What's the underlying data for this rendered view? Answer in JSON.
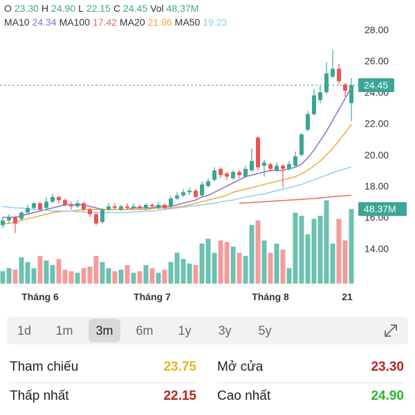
{
  "header": {
    "ohlc": [
      {
        "label": "O",
        "value": "23.30"
      },
      {
        "label": "H",
        "value": "24.90"
      },
      {
        "label": "L",
        "value": "22.15"
      },
      {
        "label": "C",
        "value": "24.45"
      },
      {
        "label": "Vol",
        "value": "48,37M"
      }
    ],
    "ma": [
      {
        "label": "MA10",
        "value": "24.34"
      },
      {
        "label": "MA100",
        "value": "17.42"
      },
      {
        "label": "MA20",
        "value": "21.96"
      },
      {
        "label": "MA50",
        "value": "19.23"
      }
    ]
  },
  "chart_data": {
    "type": "candlestick",
    "categories": [
      null,
      null,
      null,
      null,
      null,
      null,
      "Tháng 6",
      null,
      null,
      null,
      null,
      null,
      null,
      null,
      null,
      null,
      null,
      null,
      null,
      null,
      null,
      null,
      null,
      null,
      "Tháng 7",
      null,
      null,
      null,
      null,
      null,
      null,
      null,
      null,
      null,
      null,
      null,
      null,
      null,
      null,
      null,
      null,
      null,
      null,
      "Tháng 8",
      null,
      null,
      null,
      null,
      null,
      null,
      null,
      null,
      null,
      null,
      null,
      null,
      "21"
    ],
    "open": [
      15.5,
      15.8,
      16.0,
      15.9,
      16.3,
      16.6,
      16.9,
      16.6,
      17.0,
      17.3,
      17.1,
      16.8,
      16.7,
      16.9,
      16.5,
      16.2,
      15.7,
      16.5,
      16.7,
      16.5,
      16.7,
      16.6,
      16.7,
      16.6,
      16.8,
      16.6,
      16.8,
      16.7,
      17.2,
      17.4,
      17.6,
      17.7,
      17.4,
      18.0,
      18.4,
      19.1,
      18.8,
      18.5,
      18.9,
      18.6,
      19.0,
      21.1,
      19.3,
      19.4,
      19.0,
      19.3,
      19.1,
      19.3,
      20.0,
      21.6,
      22.6,
      23.5,
      24.0,
      25.0,
      25.5,
      24.5,
      23.3
    ],
    "high": [
      16.0,
      16.2,
      16.1,
      16.4,
      16.8,
      17.0,
      17.0,
      17.3,
      17.5,
      17.4,
      17.2,
      17.0,
      17.1,
      17.0,
      16.6,
      16.3,
      16.6,
      16.9,
      16.9,
      16.8,
      16.9,
      16.9,
      16.8,
      16.9,
      16.9,
      17.0,
      16.9,
      17.4,
      17.6,
      17.8,
      17.9,
      17.8,
      18.3,
      18.5,
      19.2,
      19.2,
      18.9,
      19.0,
      19.0,
      19.3,
      20.4,
      21.2,
      19.7,
      19.5,
      19.5,
      19.4,
      19.6,
      20.2,
      21.4,
      22.8,
      24.2,
      24.4,
      25.9,
      26.7,
      25.8,
      24.6,
      24.9
    ],
    "low": [
      15.3,
      15.6,
      15.0,
      15.8,
      16.2,
      16.5,
      16.4,
      16.5,
      16.9,
      16.9,
      16.7,
      16.5,
      16.6,
      16.4,
      16.0,
      15.5,
      15.6,
      16.4,
      16.5,
      16.4,
      16.5,
      16.5,
      16.5,
      16.5,
      16.6,
      16.5,
      16.5,
      16.6,
      17.1,
      17.3,
      17.4,
      17.2,
      17.3,
      17.9,
      18.3,
      18.5,
      18.4,
      18.4,
      18.5,
      18.5,
      18.9,
      19.0,
      18.6,
      18.9,
      18.9,
      17.9,
      19.0,
      19.2,
      19.9,
      21.5,
      22.5,
      23.3,
      23.9,
      24.9,
      24.5,
      23.7,
      22.15
    ],
    "close": [
      15.8,
      16.0,
      15.6,
      16.3,
      16.6,
      16.9,
      16.5,
      17.0,
      17.3,
      17.1,
      16.8,
      16.7,
      16.9,
      16.5,
      16.2,
      15.6,
      16.5,
      16.7,
      16.6,
      16.7,
      16.6,
      16.7,
      16.6,
      16.8,
      16.7,
      16.8,
      16.6,
      17.2,
      17.4,
      17.6,
      17.7,
      17.3,
      18.1,
      18.3,
      19.0,
      18.7,
      18.6,
      18.9,
      18.7,
      19.1,
      19.6,
      19.2,
      19.5,
      19.1,
      19.3,
      19.1,
      19.4,
      19.9,
      21.3,
      22.6,
      23.8,
      24.0,
      25.2,
      25.5,
      24.7,
      24.1,
      24.45
    ],
    "up_color": "#3ba596",
    "down_color": "#ef5350",
    "last_close_label": "24.45",
    "ylim": [
      11.76,
      29.9
    ],
    "yticks": [
      {
        "value": 14,
        "label": "14.00"
      },
      {
        "value": 16,
        "label": "16.00"
      },
      {
        "value": 18,
        "label": "18.00"
      },
      {
        "value": 20,
        "label": "20.00"
      },
      {
        "value": 22,
        "label": "22.00"
      },
      {
        "value": 24,
        "label": "24.00"
      },
      {
        "value": 26,
        "label": "26.00"
      },
      {
        "value": 28,
        "label": "28.00"
      }
    ],
    "volume": {
      "axis": "y2",
      "up_color": "#6cc1b1",
      "down_color": "#f49b9b",
      "values": [
        8,
        10,
        9,
        17,
        14,
        10,
        18,
        15,
        12,
        16,
        9,
        8,
        7,
        10,
        11,
        18,
        14,
        10,
        8,
        9,
        12,
        7,
        8,
        12,
        10,
        7,
        9,
        14,
        20,
        16,
        13,
        12,
        26,
        29,
        20,
        28,
        27,
        24,
        20,
        18,
        38,
        41,
        28,
        20,
        26,
        22,
        10,
        46,
        44,
        32,
        42,
        44,
        54,
        26,
        42,
        28,
        48.37
      ],
      "last_label": "48.37M"
    },
    "y2lim": [
      0,
      184
    ],
    "ma": [
      {
        "name": "MA10",
        "color": "#8a6cc9",
        "values": [
          16.0,
          16.0,
          16.0,
          16.1,
          16.2,
          16.3,
          16.4,
          16.5,
          16.6,
          16.7,
          16.8,
          16.8,
          16.8,
          16.8,
          16.7,
          16.6,
          16.5,
          16.5,
          16.5,
          16.5,
          16.5,
          16.6,
          16.6,
          16.6,
          16.6,
          16.7,
          16.7,
          16.7,
          16.8,
          16.9,
          17.0,
          17.1,
          17.3,
          17.4,
          17.6,
          17.8,
          18.0,
          18.2,
          18.4,
          18.6,
          18.7,
          18.8,
          18.9,
          19.0,
          19.0,
          19.0,
          19.1,
          19.2,
          19.4,
          19.8,
          20.3,
          20.9,
          21.5,
          22.2,
          22.9,
          23.6,
          24.34
        ]
      },
      {
        "name": "MA100",
        "color": "#e8675f",
        "values": [
          null,
          null,
          null,
          null,
          null,
          null,
          null,
          null,
          null,
          null,
          null,
          null,
          null,
          null,
          null,
          null,
          null,
          null,
          null,
          null,
          null,
          null,
          null,
          null,
          null,
          null,
          null,
          null,
          null,
          null,
          null,
          null,
          null,
          null,
          null,
          null,
          null,
          null,
          16.9,
          16.92,
          16.95,
          16.97,
          17.0,
          17.02,
          17.05,
          17.07,
          17.1,
          17.12,
          17.15,
          17.18,
          17.2,
          17.24,
          17.28,
          17.32,
          17.35,
          17.38,
          17.42
        ]
      },
      {
        "name": "MA20",
        "color": "#f2a83a",
        "values": [
          15.6,
          15.6,
          15.7,
          15.8,
          15.9,
          16.0,
          16.1,
          16.2,
          16.3,
          16.35,
          16.4,
          16.4,
          16.45,
          16.5,
          16.5,
          16.5,
          16.5,
          16.5,
          16.5,
          16.5,
          16.5,
          16.5,
          16.5,
          16.5,
          16.55,
          16.6,
          16.6,
          16.6,
          16.65,
          16.7,
          16.8,
          16.9,
          17.0,
          17.1,
          17.2,
          17.3,
          17.4,
          17.6,
          17.7,
          17.8,
          17.9,
          18.0,
          18.1,
          18.2,
          18.3,
          18.4,
          18.5,
          18.6,
          18.8,
          19.0,
          19.3,
          19.6,
          20.0,
          20.4,
          20.9,
          21.4,
          21.96
        ]
      },
      {
        "name": "MA50",
        "color": "#8fcdf2",
        "values": [
          16.7,
          16.65,
          16.6,
          16.6,
          16.55,
          16.5,
          16.5,
          16.45,
          16.4,
          16.4,
          16.4,
          16.4,
          16.35,
          16.35,
          16.3,
          16.3,
          16.3,
          16.3,
          16.3,
          16.3,
          16.3,
          16.35,
          16.35,
          16.4,
          16.4,
          16.45,
          16.5,
          16.55,
          16.6,
          16.65,
          16.7,
          16.75,
          16.8,
          16.85,
          16.9,
          17.0,
          17.05,
          17.1,
          17.2,
          17.3,
          17.35,
          17.45,
          17.5,
          17.6,
          17.7,
          17.8,
          17.9,
          18.0,
          18.1,
          18.25,
          18.4,
          18.55,
          18.7,
          18.85,
          19.0,
          19.1,
          19.23
        ]
      }
    ]
  },
  "timeframes": {
    "items": [
      "1d",
      "1m",
      "3m",
      "6m",
      "1y",
      "3y",
      "5y"
    ],
    "selected": "3m"
  },
  "stats": [
    {
      "label": "Tham chiếu",
      "value": "23.75",
      "color": "#e6b422"
    },
    {
      "label": "Mở cửa",
      "value": "23.30",
      "color": "#b3261e"
    },
    {
      "label": "Thấp nhất",
      "value": "22.15",
      "color": "#b3261e"
    },
    {
      "label": "Cao nhất",
      "value": "24.90",
      "color": "#2fb52f"
    }
  ]
}
